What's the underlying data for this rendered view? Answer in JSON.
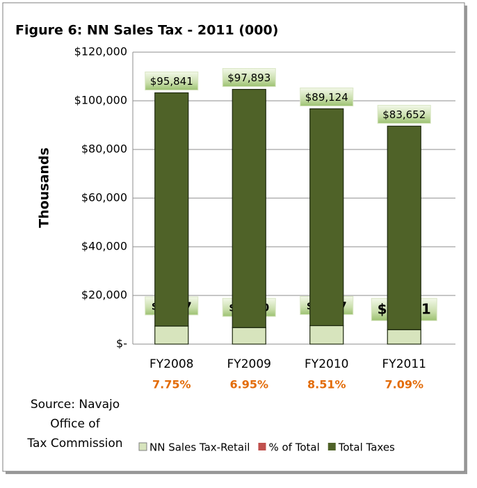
{
  "chart_data": {
    "type": "stacked_bar",
    "title": "Figure 6: NN Sales Tax - 2011 (000)",
    "ylabel": "Thousands",
    "categories": [
      "FY2008",
      "FY2009",
      "FY2010",
      "FY2011"
    ],
    "series": [
      {
        "name": "NN Sales Tax-Retail",
        "color": "#d7e4bd",
        "values": [
          7427,
          6800,
          7587,
          5931
        ],
        "value_labels": [
          "$7,427",
          "$6,800",
          "$7,587",
          "$5,931"
        ]
      },
      {
        "name": "% of Total",
        "color": "#c0504d",
        "values": [
          7.75,
          6.95,
          8.51,
          7.09
        ],
        "value_labels": [
          "7.75%",
          "6.95%",
          "8.51%",
          "7.09%"
        ]
      },
      {
        "name": "Total Taxes",
        "color": "#4f6228",
        "values": [
          95841,
          97893,
          89124,
          83652
        ],
        "value_labels": [
          "$95,841",
          "$97,893",
          "$89,124",
          "$83,652"
        ]
      }
    ],
    "ylim": [
      0,
      120000
    ],
    "yticks": [
      {
        "value": 0,
        "label": "$-"
      },
      {
        "value": 20000,
        "label": "$20,000"
      },
      {
        "value": 40000,
        "label": "$40,000"
      },
      {
        "value": 60000,
        "label": "$60,000"
      },
      {
        "value": 80000,
        "label": "$80,000"
      },
      {
        "value": 100000,
        "label": "$100,000"
      },
      {
        "value": 120000,
        "label": "$120,000"
      }
    ],
    "grid": true,
    "legend": "bottom",
    "source": [
      "Source: Navajo",
      "Office of",
      "Tax Commission"
    ]
  }
}
